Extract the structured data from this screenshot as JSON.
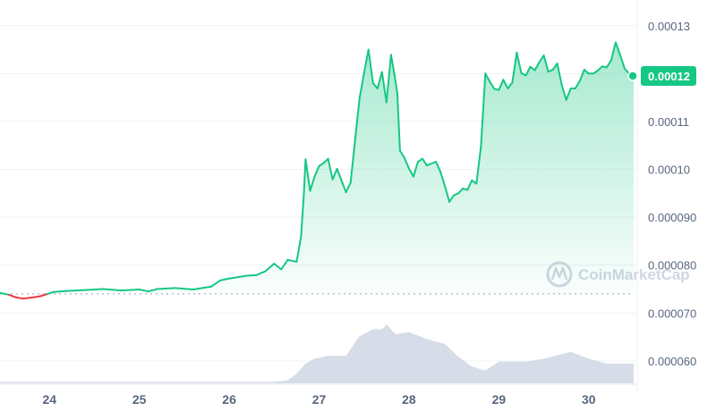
{
  "chart_data": {
    "type": "area",
    "x_ticks": [
      "24",
      "25",
      "26",
      "27",
      "28",
      "29",
      "30"
    ],
    "y_ticks": [
      "0.00013",
      "0.00012",
      "0.00011",
      "0.00010",
      "0.000090",
      "0.000080",
      "0.000070",
      "0.000060"
    ],
    "ylim": [
      5.55e-05,
      0.0001335
    ],
    "xlim": [
      23.45,
      30.5
    ],
    "grid": true,
    "reference_price": 7.4e-05,
    "current_price_label": "0.00012",
    "current_price": 0.0001195,
    "watermark": "CoinMarketCap",
    "colors": {
      "up_line": "#16c784",
      "down_line": "#ea3943",
      "area_top": "#16c784",
      "volume": "#cfd6e4",
      "grid": "#eff2f5",
      "tick": "#58667e"
    },
    "series": [
      {
        "points": [
          [
            23.45,
            7.42e-05
          ],
          [
            23.55,
            7.38e-05
          ],
          [
            23.62,
            7.33e-05
          ],
          [
            23.7,
            7.3e-05
          ],
          [
            23.8,
            7.32e-05
          ],
          [
            23.9,
            7.35e-05
          ],
          [
            23.98,
            7.4e-05
          ],
          [
            24.05,
            7.44e-05
          ],
          [
            24.2,
            7.46e-05
          ],
          [
            24.4,
            7.48e-05
          ],
          [
            24.6,
            7.5e-05
          ],
          [
            24.8,
            7.47e-05
          ],
          [
            25.0,
            7.49e-05
          ],
          [
            25.1,
            7.45e-05
          ],
          [
            25.2,
            7.5e-05
          ],
          [
            25.4,
            7.52e-05
          ],
          [
            25.6,
            7.49e-05
          ],
          [
            25.8,
            7.55e-05
          ],
          [
            25.9,
            7.68e-05
          ],
          [
            26.0,
            7.72e-05
          ],
          [
            26.2,
            7.78e-05
          ],
          [
            26.3,
            7.79e-05
          ],
          [
            26.4,
            7.87e-05
          ],
          [
            26.5,
            8.03e-05
          ],
          [
            26.58,
            7.91e-05
          ],
          [
            26.65,
            8.11e-05
          ],
          [
            26.75,
            8.07e-05
          ],
          [
            26.8,
            8.6e-05
          ],
          [
            26.83,
            9.45e-05
          ],
          [
            26.85,
            0.0001021
          ],
          [
            26.9,
            9.55e-05
          ],
          [
            26.95,
            9.85e-05
          ],
          [
            27.0,
            0.0001007
          ],
          [
            27.05,
            0.0001013
          ],
          [
            27.1,
            0.0001022
          ],
          [
            27.15,
            9.79e-05
          ],
          [
            27.2,
            0.0001001
          ],
          [
            27.3,
            9.52e-05
          ],
          [
            27.35,
            9.72e-05
          ],
          [
            27.4,
            0.000106
          ],
          [
            27.45,
            0.0001148
          ],
          [
            27.5,
            0.00012
          ],
          [
            27.55,
            0.000125
          ],
          [
            27.6,
            0.000118
          ],
          [
            27.65,
            0.0001169
          ],
          [
            27.7,
            0.0001203
          ],
          [
            27.75,
            0.000114
          ],
          [
            27.8,
            0.0001239
          ],
          [
            27.84,
            0.0001196
          ],
          [
            27.87,
            0.000116
          ],
          [
            27.9,
            0.0001039
          ],
          [
            27.95,
            0.0001024
          ],
          [
            28.0,
            0.0001002
          ],
          [
            28.05,
            9.85e-05
          ],
          [
            28.1,
            0.0001016
          ],
          [
            28.15,
            0.0001022
          ],
          [
            28.2,
            0.0001008
          ],
          [
            28.3,
            0.0001016
          ],
          [
            28.35,
            9.95e-05
          ],
          [
            28.4,
            9.65e-05
          ],
          [
            28.45,
            9.32e-05
          ],
          [
            28.5,
            9.46e-05
          ],
          [
            28.55,
            9.5e-05
          ],
          [
            28.6,
            9.6e-05
          ],
          [
            28.65,
            9.57e-05
          ],
          [
            28.7,
            9.77e-05
          ],
          [
            28.75,
            9.7e-05
          ],
          [
            28.8,
            0.0001046
          ],
          [
            28.85,
            0.00012
          ],
          [
            28.9,
            0.0001183
          ],
          [
            28.95,
            0.0001168
          ],
          [
            29.0,
            0.0001166
          ],
          [
            29.05,
            0.0001187
          ],
          [
            29.1,
            0.0001169
          ],
          [
            29.15,
            0.0001181
          ],
          [
            29.2,
            0.0001244
          ],
          [
            29.25,
            0.0001201
          ],
          [
            29.3,
            0.0001196
          ],
          [
            29.35,
            0.0001214
          ],
          [
            29.4,
            0.0001207
          ],
          [
            29.45,
            0.0001224
          ],
          [
            29.5,
            0.0001238
          ],
          [
            29.55,
            0.0001204
          ],
          [
            29.6,
            0.0001208
          ],
          [
            29.65,
            0.0001221
          ],
          [
            29.7,
            0.0001176
          ],
          [
            29.75,
            0.0001145
          ],
          [
            29.8,
            0.0001169
          ],
          [
            29.85,
            0.0001169
          ],
          [
            29.9,
            0.0001184
          ],
          [
            29.95,
            0.0001208
          ],
          [
            30.0,
            0.00012
          ],
          [
            30.05,
            0.00012
          ],
          [
            30.1,
            0.0001206
          ],
          [
            30.15,
            0.0001215
          ],
          [
            30.2,
            0.0001213
          ],
          [
            30.25,
            0.0001228
          ],
          [
            30.3,
            0.0001265
          ],
          [
            30.35,
            0.0001239
          ],
          [
            30.4,
            0.000121
          ],
          [
            30.45,
            0.00012
          ],
          [
            30.5,
            0.0001195
          ]
        ]
      }
    ],
    "volume": {
      "max": 100,
      "points": [
        [
          23.45,
          1.5
        ],
        [
          24.0,
          1.5
        ],
        [
          25.0,
          1.5
        ],
        [
          26.0,
          1.5
        ],
        [
          26.5,
          1.5
        ],
        [
          26.65,
          3
        ],
        [
          26.75,
          10
        ],
        [
          26.85,
          20
        ],
        [
          26.95,
          25
        ],
        [
          27.1,
          28
        ],
        [
          27.3,
          28
        ],
        [
          27.45,
          48
        ],
        [
          27.6,
          55
        ],
        [
          27.7,
          55
        ],
        [
          27.75,
          60
        ],
        [
          27.85,
          50
        ],
        [
          28.0,
          52
        ],
        [
          28.2,
          45
        ],
        [
          28.4,
          40
        ],
        [
          28.55,
          27
        ],
        [
          28.7,
          17
        ],
        [
          28.85,
          13
        ],
        [
          29.0,
          22
        ],
        [
          29.3,
          22
        ],
        [
          29.5,
          25
        ],
        [
          29.8,
          32
        ],
        [
          30.0,
          25
        ],
        [
          30.2,
          20
        ],
        [
          30.4,
          20
        ],
        [
          30.5,
          20
        ]
      ]
    }
  }
}
